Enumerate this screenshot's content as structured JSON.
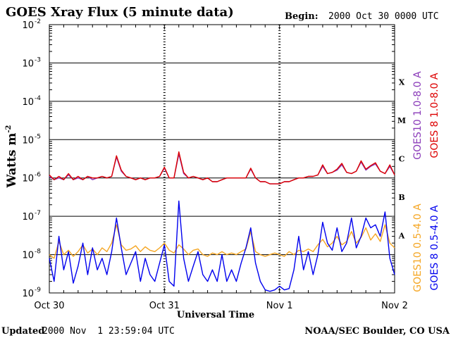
{
  "title": "GOES Xray Flux (5 minute data)",
  "begin_label": "Begin:",
  "begin_value": "2000 Oct 30 0000 UTC",
  "footer_left_label": "Updated",
  "footer_left_value": "2000 Nov  1 23:59:04 UTC",
  "footer_right": "NOAA/SEC Boulder, CO USA",
  "chart_data": {
    "type": "line",
    "title": "GOES Xray Flux (5 minute data)",
    "xlabel": "Universal Time",
    "ylabel": "Watts m",
    "ylabel_exp": "-2",
    "yscale": "log",
    "ylim": [
      1e-09,
      0.01
    ],
    "xlim_hours": [
      0,
      72
    ],
    "x_ticks": [
      {
        "hour": 0,
        "label": "Oct 30"
      },
      {
        "hour": 24,
        "label": "Oct 31"
      },
      {
        "hour": 48,
        "label": "Nov 1"
      },
      {
        "hour": 72,
        "label": "Nov 2"
      }
    ],
    "y_ticks": [
      {
        "exp": -2,
        "label": "10",
        "sup": "-2"
      },
      {
        "exp": -3,
        "label": "10",
        "sup": "-3"
      },
      {
        "exp": -4,
        "label": "10",
        "sup": "-4"
      },
      {
        "exp": -5,
        "label": "10",
        "sup": "-5"
      },
      {
        "exp": -6,
        "label": "10",
        "sup": "-6"
      },
      {
        "exp": -7,
        "label": "10",
        "sup": "-7"
      },
      {
        "exp": -8,
        "label": "10",
        "sup": "-8"
      },
      {
        "exp": -9,
        "label": "10",
        "sup": "-9"
      }
    ],
    "flare_classes": [
      {
        "label": "X",
        "exp": -3.5
      },
      {
        "label": "M",
        "exp": -4.5
      },
      {
        "label": "C",
        "exp": -5.5
      },
      {
        "label": "B",
        "exp": -6.5
      },
      {
        "label": "A",
        "exp": -7.5
      }
    ],
    "grid_lines_y": [
      -3,
      -4,
      -5,
      -6,
      -7,
      -8
    ],
    "day_separators_hours": [
      24,
      48
    ],
    "legend": [
      {
        "name": "GOES10 1.0-8.0 A",
        "color": "#8a3ab9"
      },
      {
        "name": "GOES 8 1.0-8.0 A",
        "color": "#dd0000"
      },
      {
        "name": "GOES10 0.5-4.0 A",
        "color": "#f5a623"
      },
      {
        "name": "GOES 8 0.5-4.0 A",
        "color": "#0000ee"
      }
    ],
    "series": [
      {
        "name": "GOES10 1.0-8.0 A",
        "color": "#8a3ab9",
        "x_hours": [
          0,
          1,
          2,
          3,
          4,
          5,
          6,
          7,
          8,
          9,
          10,
          11,
          12,
          13,
          14,
          15,
          16,
          17,
          18,
          19,
          20,
          21,
          22,
          23,
          24,
          25,
          26,
          27,
          28,
          29,
          30,
          31,
          32,
          33,
          34,
          35,
          36,
          37,
          38,
          39,
          40,
          41,
          42,
          43,
          44,
          45,
          46,
          47,
          48,
          49,
          50,
          51,
          52,
          53,
          54,
          55,
          56,
          57,
          58,
          59,
          60,
          61,
          62,
          63,
          64,
          65,
          66,
          67,
          68,
          69,
          70,
          71,
          72
        ],
        "values": [
          1.1e-06,
          9e-07,
          1e-06,
          9e-07,
          1.2e-06,
          9e-07,
          1e-06,
          9e-07,
          1.1e-06,
          9e-07,
          1e-06,
          1.1e-06,
          1e-06,
          1.1e-06,
          3.5e-06,
          1.5e-06,
          1.1e-06,
          1e-06,
          9e-07,
          1e-06,
          9e-07,
          1e-06,
          1e-06,
          1.1e-06,
          1.8e-06,
          1e-06,
          1e-06,
          4.2e-06,
          1.3e-06,
          1e-06,
          1.1e-06,
          1e-06,
          9e-07,
          1e-06,
          8e-07,
          8e-07,
          9e-07,
          1e-06,
          1e-06,
          1e-06,
          1e-06,
          1e-06,
          1.7e-06,
          1e-06,
          8e-07,
          8e-07,
          7e-07,
          7e-07,
          7e-07,
          8e-07,
          8e-07,
          9e-07,
          1e-06,
          1e-06,
          1.1e-06,
          1.1e-06,
          1.2e-06,
          2e-06,
          1.3e-06,
          1.4e-06,
          1.6e-06,
          2.2e-06,
          1.4e-06,
          1.3e-06,
          1.5e-06,
          2.6e-06,
          1.6e-06,
          2e-06,
          2.3e-06,
          1.5e-06,
          1.3e-06,
          2e-06,
          1.2e-06
        ]
      },
      {
        "name": "GOES 8 1.0-8.0 A",
        "color": "#dd0000",
        "x_hours": [
          0,
          1,
          2,
          3,
          4,
          5,
          6,
          7,
          8,
          9,
          10,
          11,
          12,
          13,
          14,
          15,
          16,
          17,
          18,
          19,
          20,
          21,
          22,
          23,
          24,
          25,
          26,
          27,
          28,
          29,
          30,
          31,
          32,
          33,
          34,
          35,
          36,
          37,
          38,
          39,
          40,
          41,
          42,
          43,
          44,
          45,
          46,
          47,
          48,
          49,
          50,
          51,
          52,
          53,
          54,
          55,
          56,
          57,
          58,
          59,
          60,
          61,
          62,
          63,
          64,
          65,
          66,
          67,
          68,
          69,
          70,
          71,
          72
        ],
        "values": [
          1.2e-06,
          9e-07,
          1.1e-06,
          9e-07,
          1.3e-06,
          9e-07,
          1.1e-06,
          9e-07,
          1.1e-06,
          1e-06,
          1e-06,
          1.1e-06,
          1e-06,
          1.1e-06,
          3.8e-06,
          1.6e-06,
          1.1e-06,
          1e-06,
          9e-07,
          1e-06,
          9e-07,
          1e-06,
          1e-06,
          1.1e-06,
          1.9e-06,
          1e-06,
          1e-06,
          4.8e-06,
          1.4e-06,
          1e-06,
          1.1e-06,
          1e-06,
          9e-07,
          1e-06,
          8e-07,
          8e-07,
          9e-07,
          1e-06,
          1e-06,
          1e-06,
          1e-06,
          1e-06,
          1.8e-06,
          1e-06,
          8e-07,
          8e-07,
          7e-07,
          7e-07,
          7e-07,
          8e-07,
          8e-07,
          9e-07,
          1e-06,
          1e-06,
          1.1e-06,
          1.1e-06,
          1.2e-06,
          2.2e-06,
          1.3e-06,
          1.4e-06,
          1.7e-06,
          2.4e-06,
          1.4e-06,
          1.3e-06,
          1.5e-06,
          2.8e-06,
          1.7e-06,
          2.1e-06,
          2.5e-06,
          1.5e-06,
          1.3e-06,
          2.2e-06,
          1.2e-06
        ]
      },
      {
        "name": "GOES10 0.5-4.0 A",
        "color": "#f5a623",
        "x_hours": [
          0,
          1,
          2,
          3,
          4,
          5,
          6,
          7,
          8,
          9,
          10,
          11,
          12,
          13,
          14,
          15,
          16,
          17,
          18,
          19,
          20,
          21,
          22,
          23,
          24,
          25,
          26,
          27,
          28,
          29,
          30,
          31,
          32,
          33,
          34,
          35,
          36,
          37,
          38,
          39,
          40,
          41,
          42,
          43,
          44,
          45,
          46,
          47,
          48,
          49,
          50,
          51,
          52,
          53,
          54,
          55,
          56,
          57,
          58,
          59,
          60,
          61,
          62,
          63,
          64,
          65,
          66,
          67,
          68,
          69,
          70,
          71,
          72
        ],
        "values": [
          1e-08,
          8e-09,
          2.2e-08,
          1e-08,
          1.3e-08,
          9e-09,
          1.2e-08,
          1.8e-08,
          1.1e-08,
          1.4e-08,
          1e-08,
          1.5e-08,
          1.2e-08,
          2e-08,
          6e-08,
          1.8e-08,
          1.3e-08,
          1.4e-08,
          1.7e-08,
          1.2e-08,
          1.6e-08,
          1.3e-08,
          1.2e-08,
          1.5e-08,
          2e-08,
          1.3e-08,
          1.1e-08,
          1.8e-08,
          1.4e-08,
          1e-08,
          1.3e-08,
          1.4e-08,
          1e-08,
          9e-09,
          1.1e-08,
          1e-08,
          1.2e-08,
          1e-08,
          1.1e-08,
          1e-08,
          1.2e-08,
          1.4e-08,
          4e-08,
          1.2e-08,
          1e-08,
          9e-09,
          1e-08,
          1.1e-08,
          1e-08,
          9e-09,
          1.2e-08,
          1e-08,
          1.3e-08,
          1.2e-08,
          1.4e-08,
          1.2e-08,
          1.8e-08,
          2.5e-08,
          1.6e-08,
          2e-08,
          3e-08,
          1.8e-08,
          2.2e-08,
          4e-08,
          2e-08,
          2.8e-08,
          5e-08,
          2.4e-08,
          3.5e-08,
          2.2e-08,
          6e-08,
          2e-08,
          1.5e-08
        ]
      },
      {
        "name": "GOES 8 0.5-4.0 A",
        "color": "#0000ee",
        "x_hours": [
          0,
          1,
          2,
          3,
          4,
          5,
          6,
          7,
          8,
          9,
          10,
          11,
          12,
          13,
          14,
          15,
          16,
          17,
          18,
          19,
          20,
          21,
          22,
          23,
          24,
          25,
          26,
          27,
          28,
          29,
          30,
          31,
          32,
          33,
          34,
          35,
          36,
          37,
          38,
          39,
          40,
          41,
          42,
          43,
          44,
          45,
          46,
          47,
          48,
          49,
          50,
          51,
          52,
          53,
          54,
          55,
          56,
          57,
          58,
          59,
          60,
          61,
          62,
          63,
          64,
          65,
          66,
          67,
          68,
          69,
          70,
          71,
          72
        ],
        "values": [
          8e-09,
          2e-09,
          3e-08,
          4e-09,
          1.2e-08,
          1.8e-09,
          5e-09,
          2e-08,
          3e-09,
          1.5e-08,
          4e-09,
          8e-09,
          3e-09,
          1.2e-08,
          9e-08,
          1.5e-08,
          3e-09,
          6e-09,
          1.2e-08,
          2e-09,
          8e-09,
          3e-09,
          2e-09,
          6e-09,
          1.8e-08,
          2e-09,
          1.5e-09,
          2.5e-07,
          8e-09,
          2e-09,
          5e-09,
          1.2e-08,
          3e-09,
          2e-09,
          4e-09,
          2e-09,
          1e-08,
          2e-09,
          4e-09,
          2e-09,
          6e-09,
          1.5e-08,
          5e-08,
          6e-09,
          2e-09,
          1.2e-09,
          1.1e-09,
          1.2e-09,
          1.5e-09,
          1.2e-09,
          1.3e-09,
          4e-09,
          3e-08,
          4e-09,
          1.2e-08,
          3e-09,
          1e-08,
          7e-08,
          2e-08,
          1.3e-08,
          5e-08,
          1.2e-08,
          2e-08,
          9e-08,
          1.5e-08,
          3e-08,
          9e-08,
          5e-08,
          6e-08,
          3e-08,
          1.3e-07,
          8e-09,
          3e-09
        ]
      }
    ]
  }
}
